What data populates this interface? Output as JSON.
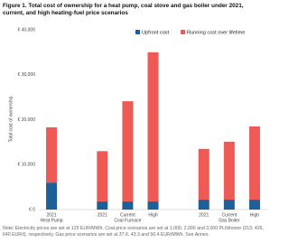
{
  "chart_data": {
    "type": "stacked_bar",
    "title": "Figure 1. Total cost of ownership for a heat pump, coal stove and gas boiler under 2021, current, and high heating-fuel price scenarios",
    "y_label": "Total cost of ownership",
    "categories": [
      "2021",
      null,
      "2021",
      "Current",
      "High",
      null,
      "2021",
      "Current",
      "High"
    ],
    "group_labels": [
      "Heat Pump",
      null,
      null,
      "Coal Furnace",
      null,
      null,
      null,
      "Gas Boiler",
      null
    ],
    "series": [
      {
        "name": "Upfront cost",
        "color": "#1f5f97",
        "values": [
          6000,
          null,
          1800,
          1800,
          1800,
          null,
          2200,
          2200,
          2200
        ]
      },
      {
        "name": "Running cost over lifetime",
        "color": "#ee5a55",
        "values": [
          12300,
          null,
          11200,
          22300,
          33200,
          null,
          11300,
          12900,
          16300
        ]
      }
    ],
    "ylim": [
      0,
      40000
    ],
    "yticks": [
      {
        "value": 0,
        "label": "€ 0"
      },
      {
        "value": 10000,
        "label": "€ 10,000"
      },
      {
        "value": 20000,
        "label": "€ 20,000"
      },
      {
        "value": 30000,
        "label": "€ 30,000"
      },
      {
        "value": 40000,
        "label": "€ 40,000"
      }
    ],
    "grid": false,
    "legend": "top-right",
    "note": "Note: Electricity prices are set at 125 EUR/MWh. Coal price scenarios are set at 1,000, 2,000 and 3,000 PLN/tonne (213, 426, 640 EUR/t), respectively. Gas price scenarios are set at 37.6, 43.3 and 56.4 EUR/MWh. See Annex."
  }
}
